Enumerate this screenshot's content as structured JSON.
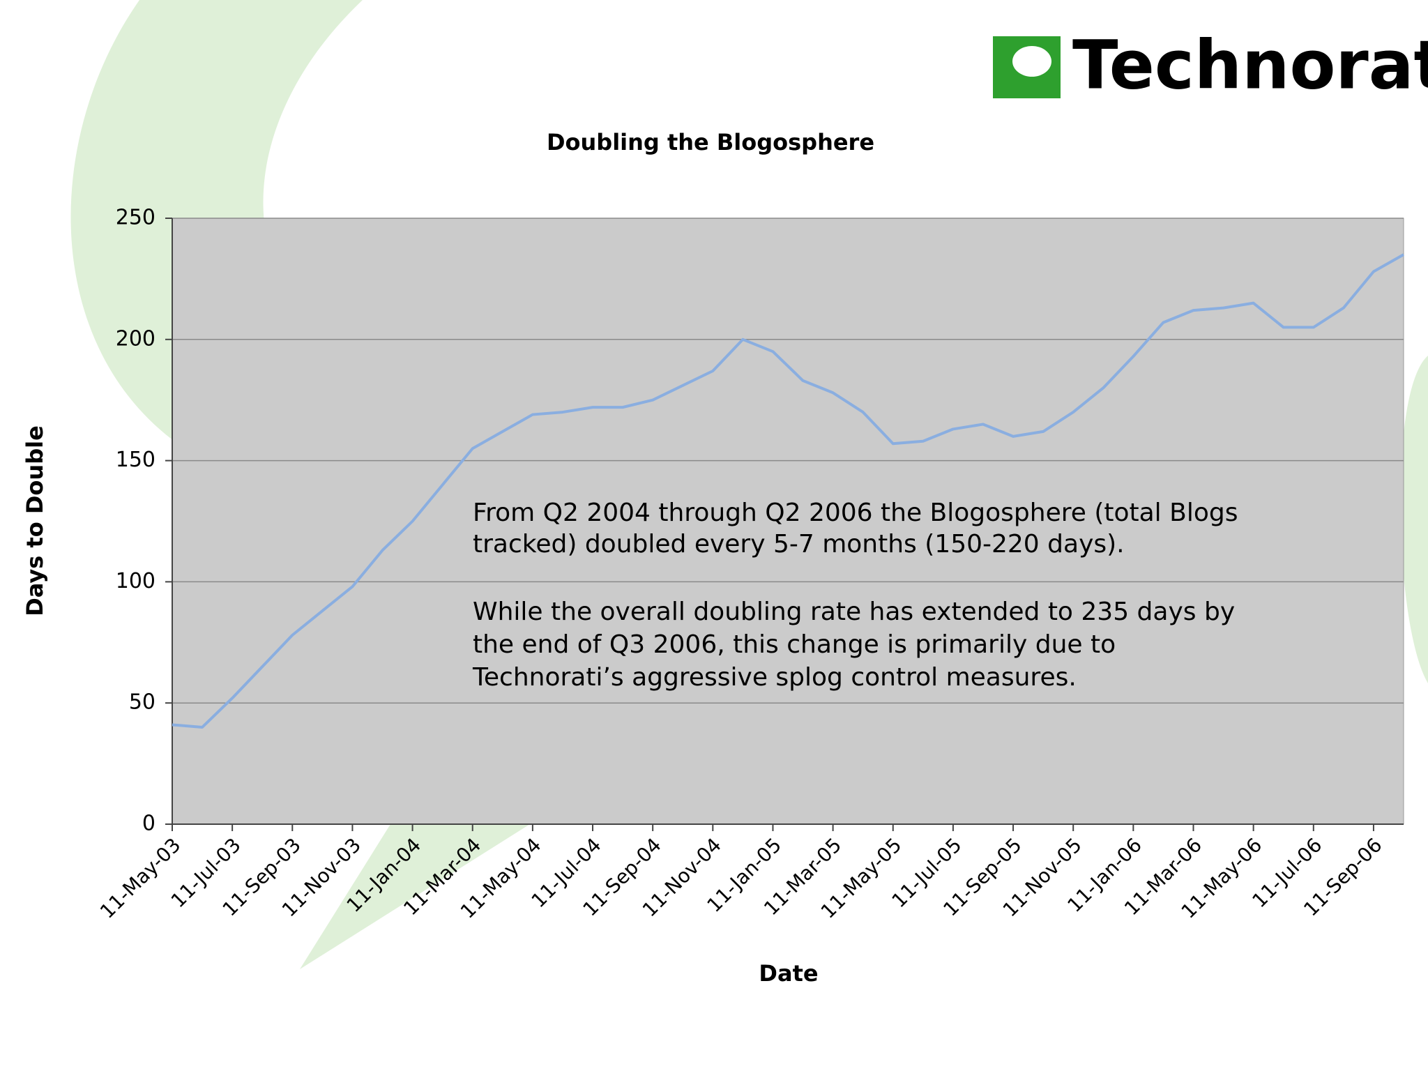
{
  "logo": "Technorati",
  "chart_data": {
    "type": "line",
    "title": "Doubling the Blogosphere",
    "x_label": "Date",
    "y_label": "Days to Double",
    "annotations": [
      "From Q2 2004 through Q2 2006 the Blogosphere (total Blogs",
      "tracked) doubled every 5-7 months (150-220 days).",
      "While the overall doubling rate has extended to 235 days by",
      "the end of Q3 2006, this change is primarily due to",
      "Technorati’s aggressive splog control measures."
    ],
    "categories": [
      "11-May-03",
      null,
      "11-Jul-03",
      null,
      "11-Sep-03",
      null,
      "11-Nov-03",
      null,
      "11-Jan-04",
      null,
      "11-Mar-04",
      null,
      "11-May-04",
      null,
      "11-Jul-04",
      null,
      "11-Sep-04",
      null,
      "11-Nov-04",
      null,
      "11-Jan-05",
      null,
      "11-Mar-05",
      null,
      "11-May-05",
      null,
      "11-Jul-05",
      null,
      "11-Sep-05",
      null,
      "11-Nov-05",
      null,
      "11-Jan-06",
      null,
      "11-Mar-06",
      null,
      "11-May-06",
      null,
      "11-Jul-06",
      null,
      "11-Sep-06",
      null
    ],
    "series": [
      {
        "name": "Days to Double",
        "color": "#8aaee0",
        "values": [
          41,
          40,
          52,
          65,
          78,
          88,
          98,
          113,
          125,
          140,
          155,
          162,
          169,
          170,
          172,
          172,
          175,
          181,
          187,
          200,
          195,
          183,
          178,
          170,
          157,
          158,
          163,
          165,
          160,
          162,
          170,
          180,
          193,
          207,
          212,
          213,
          215,
          205,
          205,
          213,
          228,
          235
        ]
      }
    ],
    "ylim": [
      0,
      250
    ],
    "yticks": [
      0,
      50,
      100,
      150,
      200,
      250
    ],
    "grid": true
  }
}
